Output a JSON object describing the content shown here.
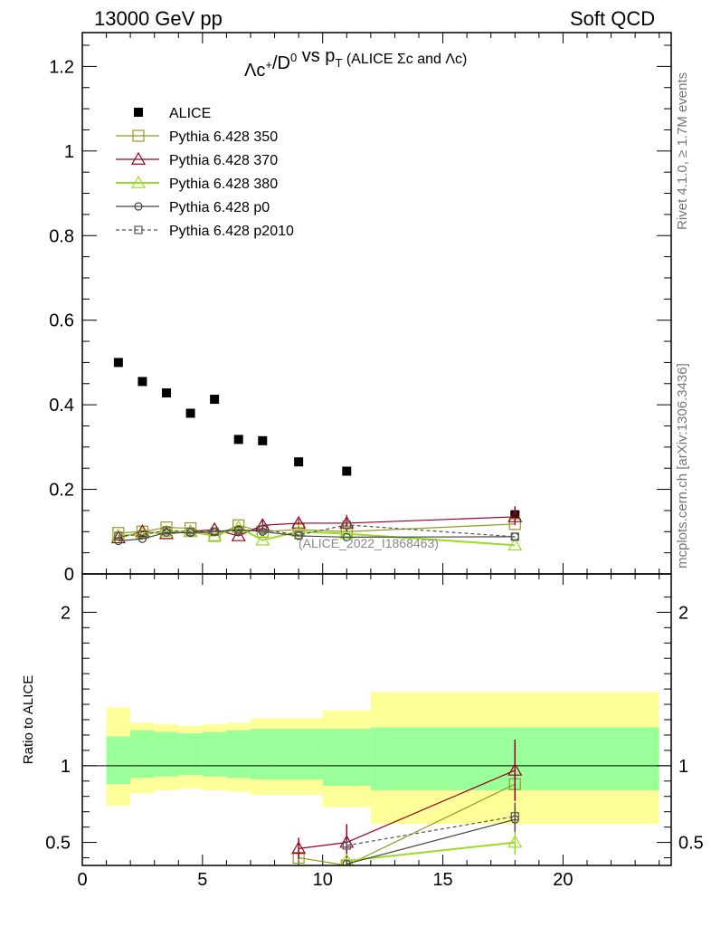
{
  "header": {
    "left": "13000 GeV pp",
    "right": "Soft QCD",
    "side_top": "Rivet 4.1.0, ≥ 1.7M events",
    "side_bottom": "mcplots.cern.ch [arXiv:1306.3436]"
  },
  "chart_data": [
    {
      "type": "scatter",
      "title_parts": {
        "a": "Λc",
        "a_sup": "+",
        "b": "/D",
        "b_sup": "0",
        "c": " vs p",
        "c_sub": "T",
        "d": " (ALICE Σc and Λc)"
      },
      "analysis_label": "(ALICE_2022_I1868463)",
      "xlim": [
        0,
        24.5
      ],
      "ylim": [
        0,
        1.28
      ],
      "y_ticks": [
        0,
        0.2,
        0.4,
        0.6,
        0.8,
        1,
        1.2
      ],
      "y_tick_labels": [
        "0",
        "0.2",
        "0.4",
        "0.6",
        "0.8",
        "1",
        "1.2"
      ],
      "series": [
        {
          "name": "ALICE",
          "style": "data",
          "color": "#000000",
          "x": [
            1.5,
            2.5,
            3.5,
            4.5,
            5.5,
            6.5,
            7.5,
            9,
            11,
            18
          ],
          "y": [
            0.5,
            0.455,
            0.428,
            0.38,
            0.413,
            0.318,
            0.315,
            0.265,
            0.243,
            0.14
          ],
          "yerr": [
            0,
            0,
            0,
            0,
            0,
            0,
            0,
            0,
            0,
            0.02
          ]
        },
        {
          "name": "Pythia 6.428 350",
          "style": "solid",
          "marker": "square-open",
          "color": "#999922",
          "x": [
            1.5,
            2.5,
            3.5,
            4.5,
            5.5,
            6.5,
            7.5,
            9,
            11,
            18
          ],
          "y": [
            0.097,
            0.1,
            0.11,
            0.108,
            0.09,
            0.115,
            0.1,
            0.105,
            0.1,
            0.118
          ]
        },
        {
          "name": "Pythia 6.428 370",
          "style": "solid",
          "marker": "triangle-open",
          "color": "#990022",
          "x": [
            1.5,
            2.5,
            3.5,
            4.5,
            5.5,
            6.5,
            7.5,
            9,
            11,
            18
          ],
          "y": [
            0.085,
            0.1,
            0.095,
            0.1,
            0.105,
            0.09,
            0.115,
            0.12,
            0.12,
            0.135
          ],
          "yerr": [
            0,
            0,
            0,
            0,
            0,
            0,
            0.012,
            0.01,
            0.02,
            0.02
          ]
        },
        {
          "name": "Pythia 6.428 380",
          "style": "solid",
          "marker": "triangle-open",
          "color": "#99dd22",
          "x": [
            1.5,
            2.5,
            3.5,
            4.5,
            5.5,
            6.5,
            7.5,
            9,
            11,
            18
          ],
          "y": [
            0.09,
            0.095,
            0.1,
            0.1,
            0.09,
            0.11,
            0.08,
            0.1,
            0.095,
            0.068
          ]
        },
        {
          "name": "Pythia 6.428 p0",
          "style": "solid",
          "marker": "circle-open",
          "color": "#444444",
          "x": [
            1.5,
            2.5,
            3.5,
            4.5,
            5.5,
            6.5,
            7.5,
            9,
            11,
            18
          ],
          "y": [
            0.078,
            0.083,
            0.098,
            0.097,
            0.1,
            0.105,
            0.1,
            0.09,
            0.087,
            0.088
          ]
        },
        {
          "name": "Pythia 6.428 p2010",
          "style": "dashed",
          "marker": "square-open-small",
          "color": "#555555",
          "x": [
            1.5,
            2.5,
            3.5,
            4.5,
            5.5,
            6.5,
            7.5,
            9,
            11,
            18
          ],
          "y": [
            0.09,
            0.093,
            0.103,
            0.1,
            0.1,
            0.102,
            0.105,
            0.092,
            0.116,
            0.088
          ]
        }
      ]
    },
    {
      "type": "line",
      "ylabel": "Ratio to ALICE",
      "xlim": [
        0,
        24.5
      ],
      "ylim": [
        0.35,
        2.25
      ],
      "y_ticks": [
        0.5,
        1,
        2
      ],
      "y_tick_labels": [
        "0.5",
        "1",
        "2"
      ],
      "x_ticks": [
        0,
        5,
        10,
        15,
        20
      ],
      "x_tick_labels": [
        "0",
        "5",
        "10",
        "15",
        "20"
      ],
      "bands": {
        "edges": [
          1,
          2,
          3,
          4,
          5,
          6,
          7,
          8,
          10,
          12,
          24
        ],
        "yellow_lo": [
          0.74,
          0.82,
          0.84,
          0.85,
          0.84,
          0.83,
          0.81,
          0.81,
          0.73,
          0.62
        ],
        "yellow_hi": [
          1.38,
          1.28,
          1.27,
          1.26,
          1.27,
          1.28,
          1.31,
          1.31,
          1.36,
          1.48
        ],
        "green_lo": [
          0.88,
          0.92,
          0.93,
          0.94,
          0.93,
          0.92,
          0.91,
          0.91,
          0.87,
          0.84
        ],
        "green_hi": [
          1.19,
          1.23,
          1.22,
          1.21,
          1.22,
          1.23,
          1.24,
          1.24,
          1.24,
          1.25
        ]
      },
      "series": [
        {
          "name": "Pythia 6.428 350",
          "color": "#999922",
          "marker": "square-open",
          "x": [
            9,
            11,
            18
          ],
          "y": [
            0.4,
            0.35,
            0.88
          ],
          "yerr": [
            0.02,
            0.03,
            0.07
          ]
        },
        {
          "name": "Pythia 6.428 370",
          "color": "#990022",
          "marker": "triangle-open",
          "x": [
            9,
            11,
            18
          ],
          "y": [
            0.46,
            0.5,
            0.97
          ],
          "yerr": [
            0.07,
            0.12,
            0.2
          ]
        },
        {
          "name": "Pythia 6.428 380",
          "color": "#99dd22",
          "marker": "triangle-open",
          "x": [
            11,
            18
          ],
          "y": [
            0.38,
            0.5
          ],
          "yerr": [
            0.02,
            0.08
          ]
        },
        {
          "name": "Pythia 6.428 p0",
          "color": "#444444",
          "marker": "circle-open",
          "x": [
            11,
            18
          ],
          "y": [
            0.36,
            0.65
          ],
          "yerr": [
            0.02,
            0.08
          ]
        },
        {
          "name": "Pythia 6.428 p2010",
          "color": "#555555",
          "marker": "square-open-small",
          "dashed": true,
          "x": [
            11,
            18
          ],
          "y": [
            0.48,
            0.67
          ],
          "yerr": [
            0.03,
            0.09
          ]
        }
      ]
    }
  ]
}
